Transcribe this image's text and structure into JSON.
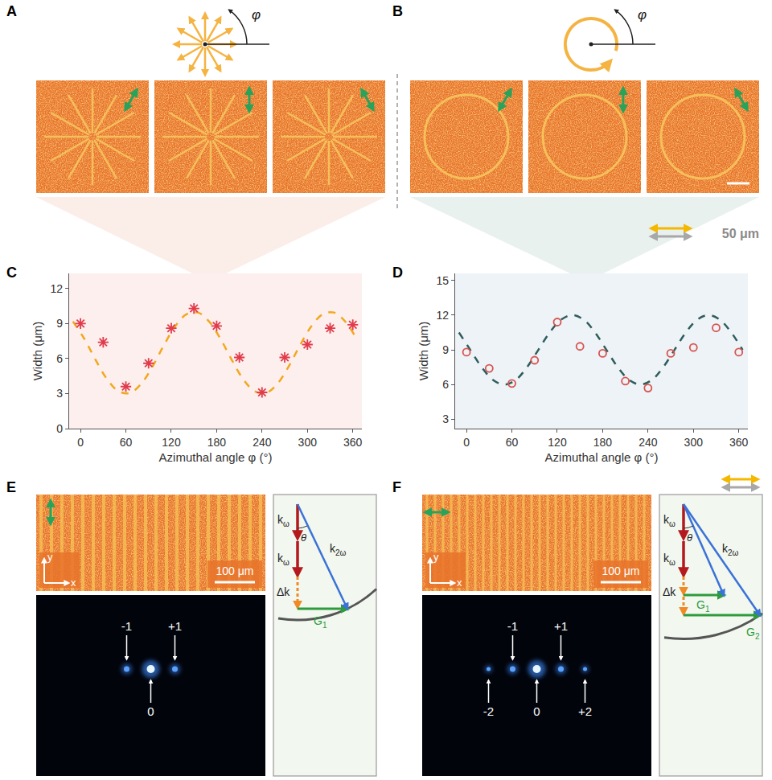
{
  "panels": [
    "A",
    "B",
    "C",
    "D",
    "E",
    "F"
  ],
  "A": {
    "symbol": "φ"
  },
  "B": {
    "symbol": "φ",
    "scale_bar": "50 μm"
  },
  "chart_data": [
    {
      "type": "scatter",
      "x_label": "Azimuthal angle φ (°)",
      "y_label": "Width (μm)",
      "xlim": [
        -15,
        372
      ],
      "xticks": [
        0,
        60,
        120,
        180,
        240,
        300,
        360
      ],
      "ylim": [
        0,
        13.3
      ],
      "yticks": [
        0,
        3,
        6,
        9,
        12
      ],
      "grid": false,
      "series": [
        {
          "type": "line",
          "line_style": "dash",
          "color": "#f2a81d",
          "x": [
            -10,
            5,
            20,
            35,
            50,
            65,
            80,
            95,
            110,
            125,
            140,
            155,
            170,
            185,
            200,
            215,
            230,
            245,
            260,
            275,
            290,
            305,
            320,
            335,
            350,
            365
          ],
          "values": [
            9.18,
            7.7,
            5.89,
            4.25,
            3.21,
            3.05,
            3.82,
            5.3,
            7.11,
            8.75,
            9.79,
            9.95,
            9.18,
            7.7,
            5.89,
            4.25,
            3.21,
            3.05,
            3.82,
            5.3,
            7.11,
            8.75,
            9.79,
            9.95,
            9.18,
            7.7
          ]
        },
        {
          "type": "scatter",
          "marker": "asterisk",
          "color": "#e23b4a",
          "x": [
            0,
            30,
            60,
            90,
            120,
            150,
            180,
            210,
            240,
            270,
            300,
            330,
            360
          ],
          "values": [
            9.0,
            7.4,
            3.6,
            5.6,
            8.6,
            10.3,
            8.8,
            6.1,
            3.1,
            6.1,
            7.2,
            8.6,
            8.9
          ]
        }
      ]
    },
    {
      "type": "scatter",
      "x_label": "Azimuthal angle φ (°)",
      "y_label": "Width (μm)",
      "xlim": [
        -15,
        372
      ],
      "xticks": [
        0,
        60,
        120,
        180,
        240,
        300,
        360
      ],
      "ylim": [
        2.2,
        15.6
      ],
      "yticks": [
        3,
        6,
        9,
        12,
        15
      ],
      "grid": false,
      "series": [
        {
          "type": "line",
          "line_style": "dash",
          "color": "#2f5d5c",
          "x": [
            -10,
            5,
            20,
            35,
            50,
            65,
            80,
            95,
            110,
            125,
            140,
            155,
            170,
            185,
            200,
            215,
            230,
            245,
            260,
            275,
            290,
            305,
            320,
            335,
            350,
            365
          ],
          "values": [
            10.5,
            9.0,
            7.5,
            6.4,
            6.0,
            6.4,
            7.5,
            9.0,
            10.5,
            11.6,
            12.0,
            11.6,
            10.5,
            9.0,
            7.5,
            6.4,
            6.0,
            6.4,
            7.5,
            9.0,
            10.5,
            11.6,
            12.0,
            11.6,
            10.5,
            9.0
          ]
        },
        {
          "type": "scatter",
          "marker": "circle_open",
          "color": "#d9534f",
          "x": [
            0,
            30,
            60,
            90,
            120,
            150,
            180,
            210,
            240,
            270,
            300,
            330,
            360
          ],
          "values": [
            8.8,
            7.4,
            6.1,
            8.1,
            11.4,
            9.3,
            8.7,
            6.3,
            5.7,
            8.7,
            9.2,
            10.9,
            8.8
          ]
        }
      ]
    }
  ],
  "E": {
    "scale_bar": "100 μm",
    "axes": {
      "x": "x",
      "y": "y"
    },
    "orders": [
      "-1",
      "+1",
      "0"
    ],
    "diagram": {
      "k_omega": {
        "base": "k",
        "sub": "ω"
      },
      "k_2omega": {
        "base": "k",
        "sub": "2ω"
      },
      "delta_k": "Δk",
      "theta": "θ",
      "gratings": [
        {
          "base": "G",
          "sub": "1"
        }
      ]
    }
  },
  "F": {
    "scale_bar": "100 μm",
    "axes": {
      "x": "x",
      "y": "y"
    },
    "orders": [
      "-1",
      "+1",
      "-2",
      "0",
      "+2"
    ],
    "diagram": {
      "k_omega": {
        "base": "k",
        "sub": "ω"
      },
      "k_2omega": {
        "base": "k",
        "sub": "2ω"
      },
      "delta_k": "Δk",
      "theta": "θ",
      "gratings": [
        {
          "base": "G",
          "sub": "1"
        },
        {
          "base": "G",
          "sub": "2"
        }
      ]
    }
  }
}
